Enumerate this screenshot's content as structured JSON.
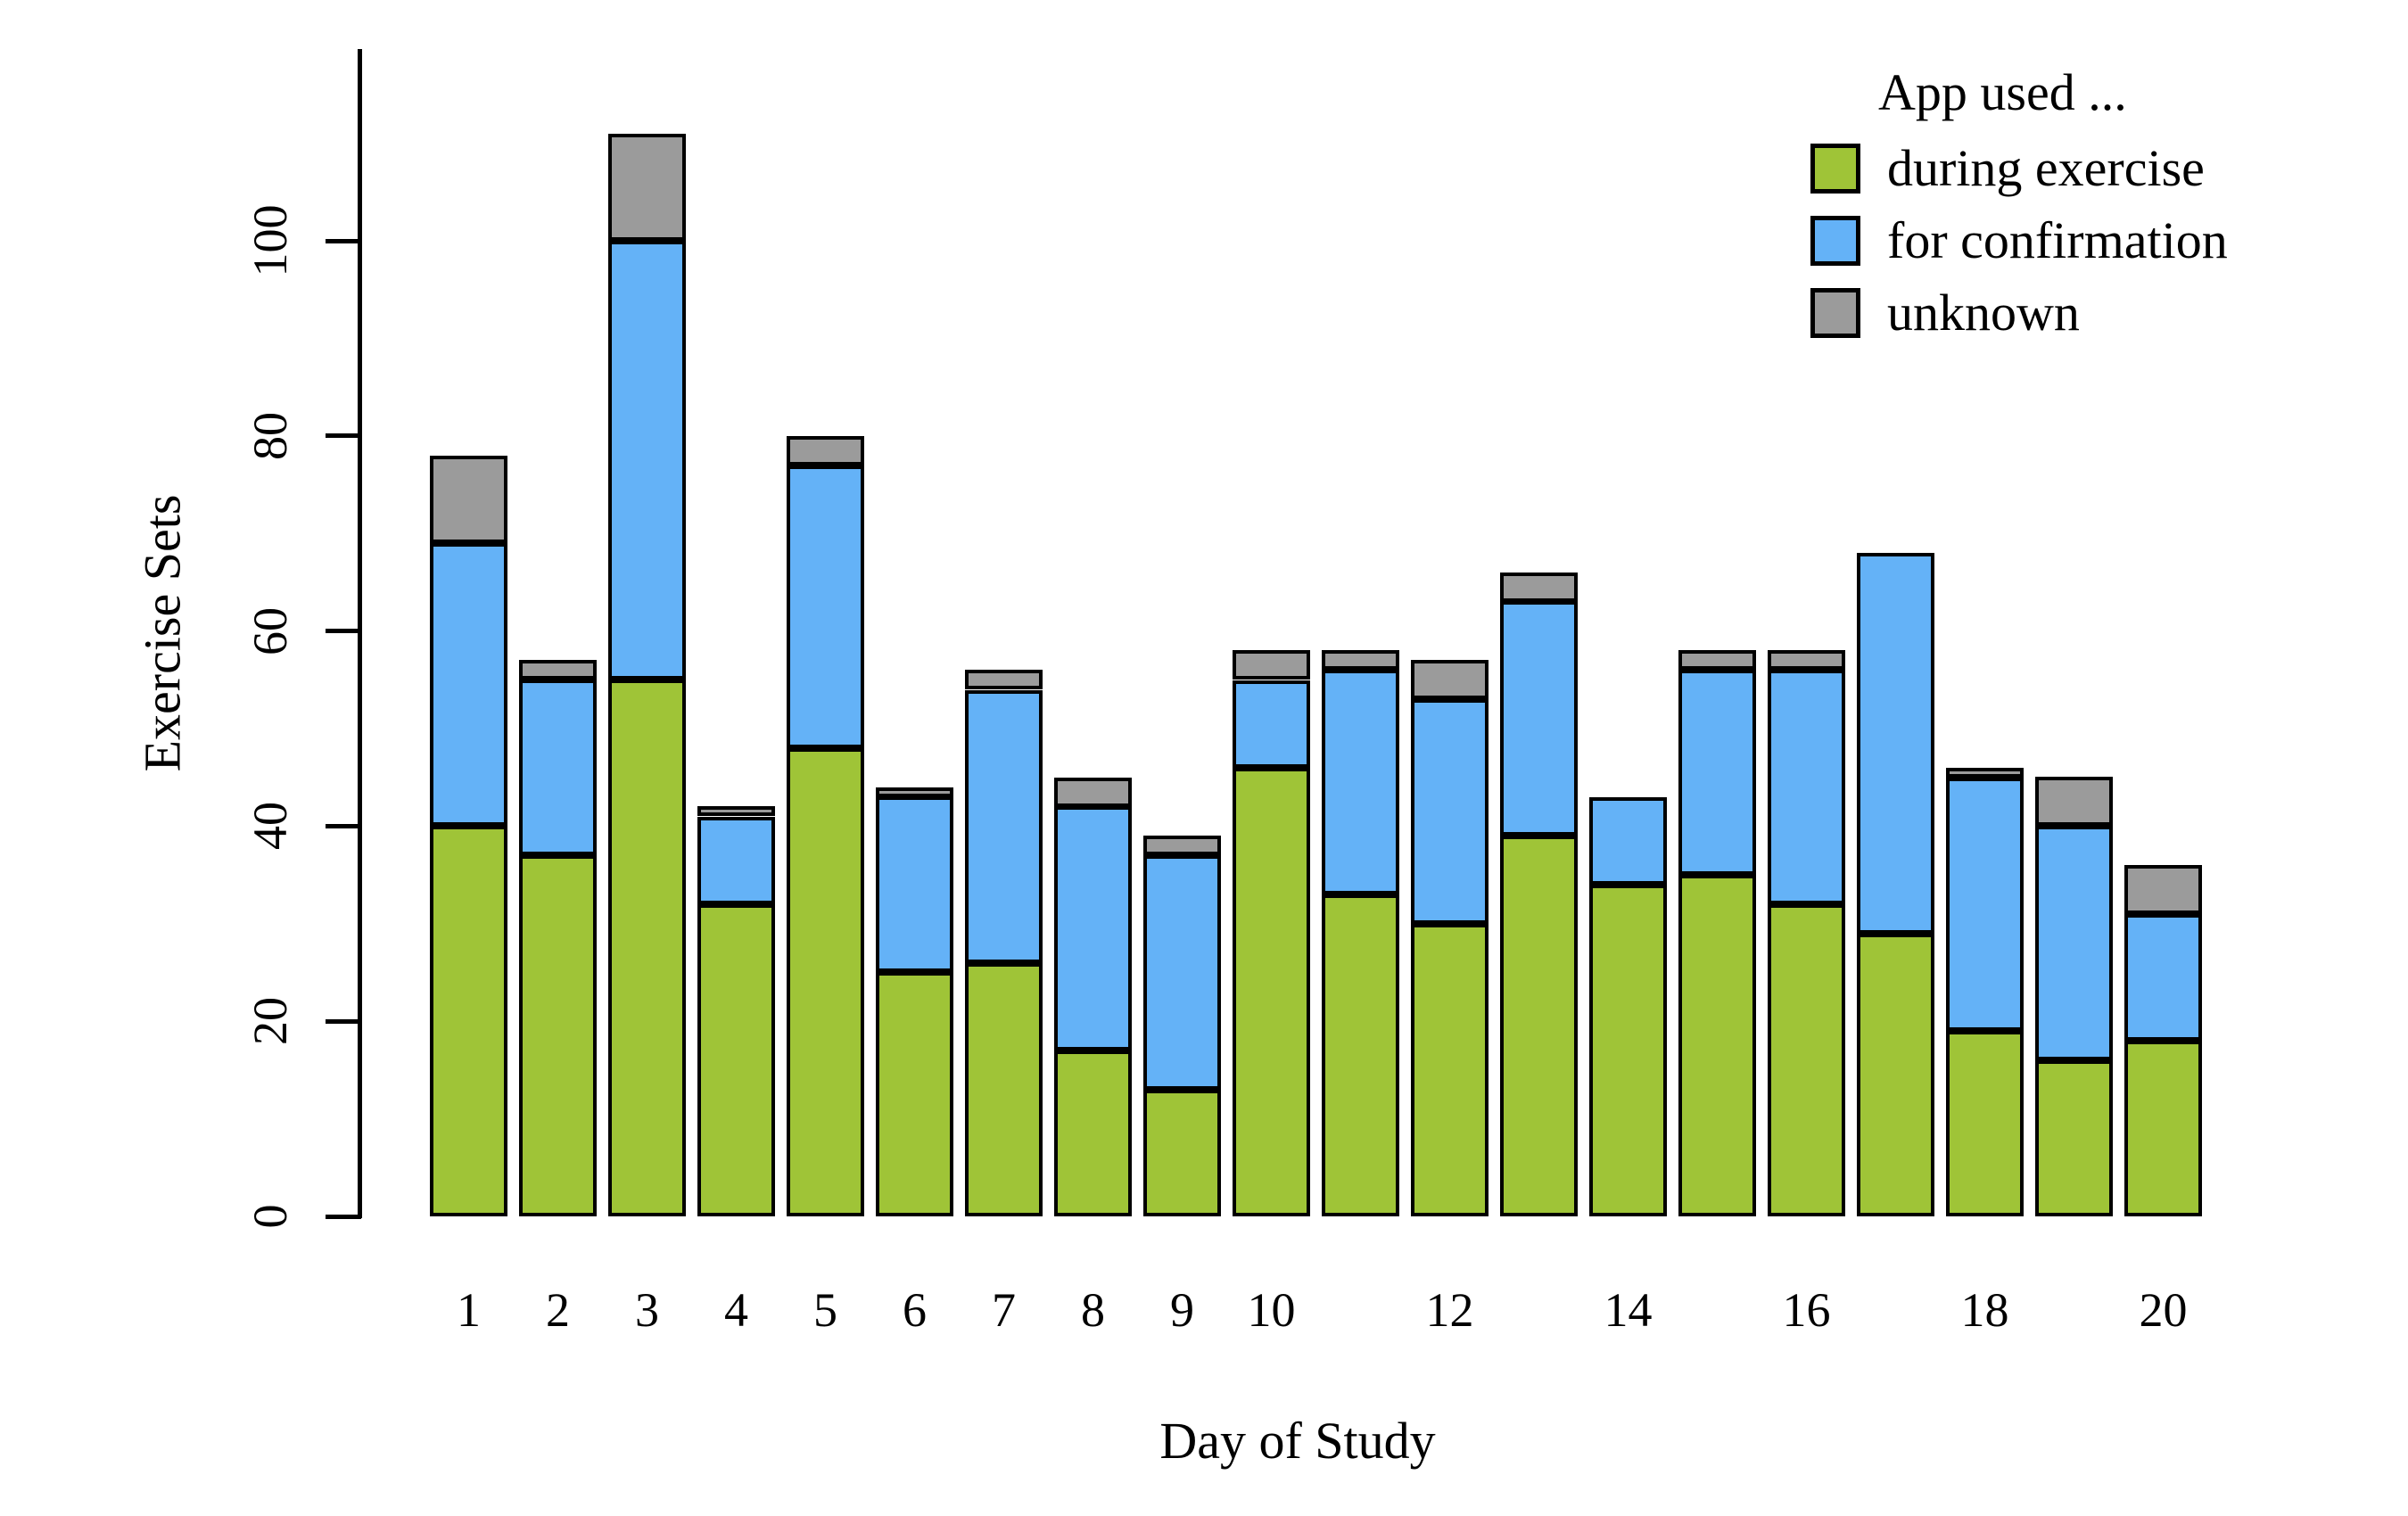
{
  "figure": {
    "y_axis": {
      "label": "Exercise Sets",
      "ticks": [
        "0",
        "20",
        "40",
        "60",
        "80",
        "100"
      ]
    },
    "x_axis": {
      "label": "Day of Study",
      "tick_labels": [
        "1",
        "2",
        "3",
        "4",
        "5",
        "6",
        "7",
        "8",
        "9",
        "10",
        "12",
        "14",
        "16",
        "18",
        "20"
      ]
    },
    "legend": {
      "title": "App used ...",
      "items": [
        {
          "label": "during exercise",
          "color": "#9FC437"
        },
        {
          "label": "for confirmation",
          "color": "#64B2F7"
        },
        {
          "label": "unknown",
          "color": "#9B9B9B"
        }
      ]
    }
  },
  "chart_data": {
    "type": "bar",
    "stacked": true,
    "title": "",
    "xlabel": "Day of Study",
    "ylabel": "Exercise Sets",
    "categories": [
      1,
      2,
      3,
      4,
      5,
      6,
      7,
      8,
      9,
      10,
      11,
      12,
      13,
      14,
      15,
      16,
      17,
      18,
      19,
      20
    ],
    "x_labeled": [
      "1",
      "2",
      "3",
      "4",
      "5",
      "6",
      "7",
      "8",
      "9",
      "10",
      "12",
      "14",
      "16",
      "18",
      "20"
    ],
    "series": [
      {
        "name": "during exercise",
        "color": "#9FC437",
        "values": [
          40,
          37,
          55,
          32,
          48,
          25,
          26,
          17,
          13,
          46,
          33,
          30,
          39,
          34,
          35,
          32,
          29,
          19,
          16,
          18
        ]
      },
      {
        "name": "for confirmation",
        "color": "#64B2F7",
        "values": [
          29,
          18,
          45,
          9,
          29,
          18,
          28,
          25,
          24,
          9,
          23,
          23,
          24,
          9,
          21,
          24,
          39,
          26,
          24,
          13
        ]
      },
      {
        "name": "unknown",
        "color": "#9B9B9B",
        "values": [
          9,
          2,
          11,
          1,
          3,
          1,
          2,
          3,
          2,
          3,
          2,
          4,
          3,
          0,
          2,
          2,
          0,
          1,
          5,
          5
        ]
      }
    ],
    "stack_totals": [
      78,
      57,
      111,
      42,
      80,
      44,
      56,
      45,
      39,
      58,
      58,
      57,
      66,
      43,
      58,
      58,
      68,
      46,
      45,
      36
    ],
    "ylim": [
      0,
      120
    ],
    "yticks": [
      0,
      20,
      40,
      60,
      80,
      100
    ],
    "grid": false,
    "legend_position": "top-right"
  }
}
